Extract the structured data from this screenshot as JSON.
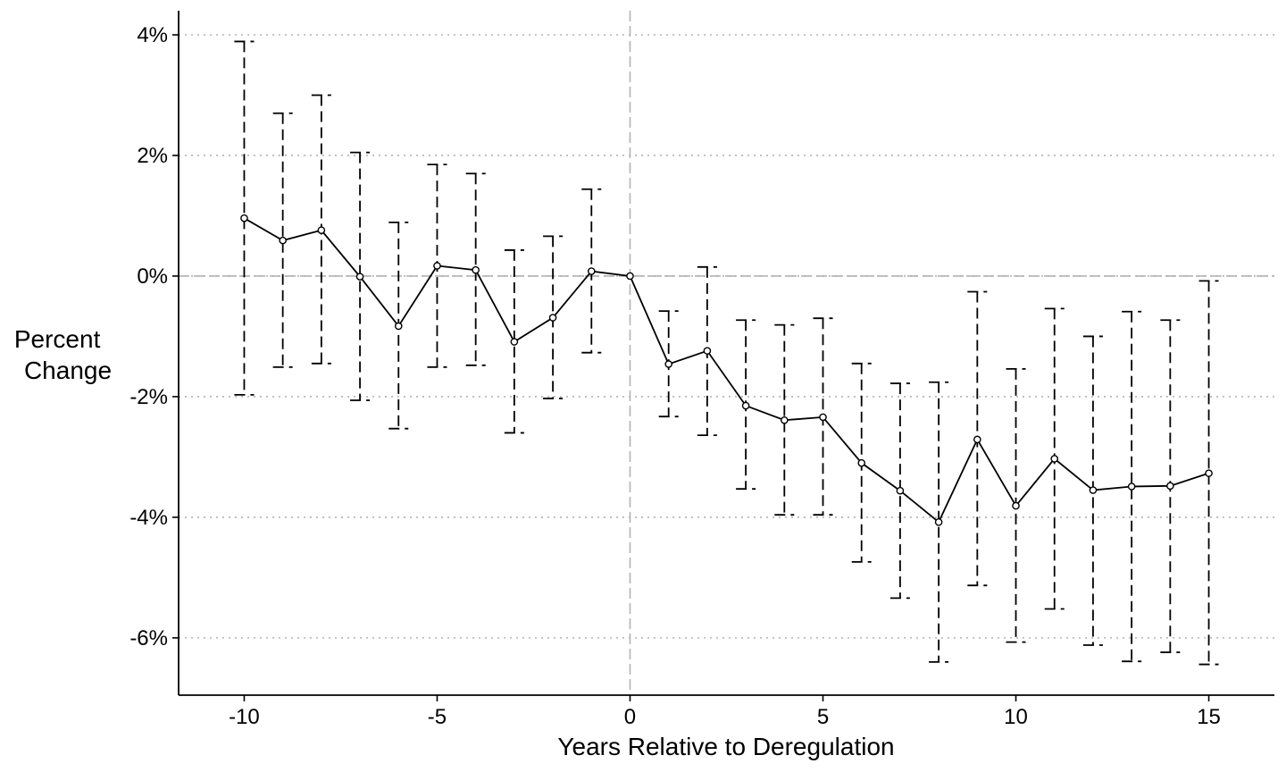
{
  "chart_data": {
    "type": "line",
    "xlabel": "Years Relative to Deregulation",
    "ylabel_lines": [
      "Percent",
      "Change"
    ],
    "xlim": [
      -11.7,
      16.7
    ],
    "ylim": [
      -6.95,
      4.4
    ],
    "x_ticks": [
      -10,
      -5,
      0,
      5,
      10,
      15
    ],
    "x_tick_labels": [
      "-10",
      "-5",
      "0",
      "5",
      "10",
      "15"
    ],
    "y_ticks": [
      4,
      2,
      0,
      -2,
      -4,
      -6
    ],
    "y_tick_labels": [
      "4%",
      "2%",
      "0%",
      "-2%",
      "-4%",
      "-6%"
    ],
    "grid": "horizontal dotted at y ticks",
    "reference_lines": {
      "x": 0,
      "y": 0
    },
    "series": [
      {
        "x": [
          -10,
          -9,
          -8,
          -7,
          -6,
          -5,
          -4,
          -3,
          -2,
          -1,
          0,
          1,
          2,
          3,
          4,
          5,
          6,
          7,
          8,
          9,
          10,
          11,
          12,
          13,
          14,
          15
        ],
        "estimate": [
          0.96,
          0.59,
          0.76,
          -0.01,
          -0.83,
          0.17,
          0.1,
          -1.09,
          -0.69,
          0.08,
          0.0,
          -1.46,
          -1.24,
          -2.15,
          -2.39,
          -2.34,
          -3.1,
          -3.56,
          -4.08,
          -2.71,
          -3.81,
          -3.03,
          -3.55,
          -3.49,
          -3.48,
          -3.27
        ],
        "ci_upper": [
          3.89,
          2.7,
          3.0,
          2.05,
          0.89,
          1.85,
          1.7,
          0.43,
          0.66,
          1.44,
          null,
          -0.58,
          0.15,
          -0.73,
          -0.81,
          -0.7,
          -1.45,
          -1.78,
          -1.76,
          -0.26,
          -1.54,
          -0.54,
          -1.0,
          -0.59,
          -0.73,
          -0.08
        ],
        "ci_lower": [
          -1.97,
          -1.51,
          -1.45,
          -2.06,
          -2.53,
          -1.51,
          -1.48,
          -2.6,
          -2.03,
          -1.27,
          null,
          -2.33,
          -2.64,
          -3.53,
          -3.96,
          -3.96,
          -4.74,
          -5.34,
          -6.4,
          -5.13,
          -6.07,
          -5.52,
          -6.12,
          -6.39,
          -6.24,
          -6.44
        ]
      }
    ]
  }
}
